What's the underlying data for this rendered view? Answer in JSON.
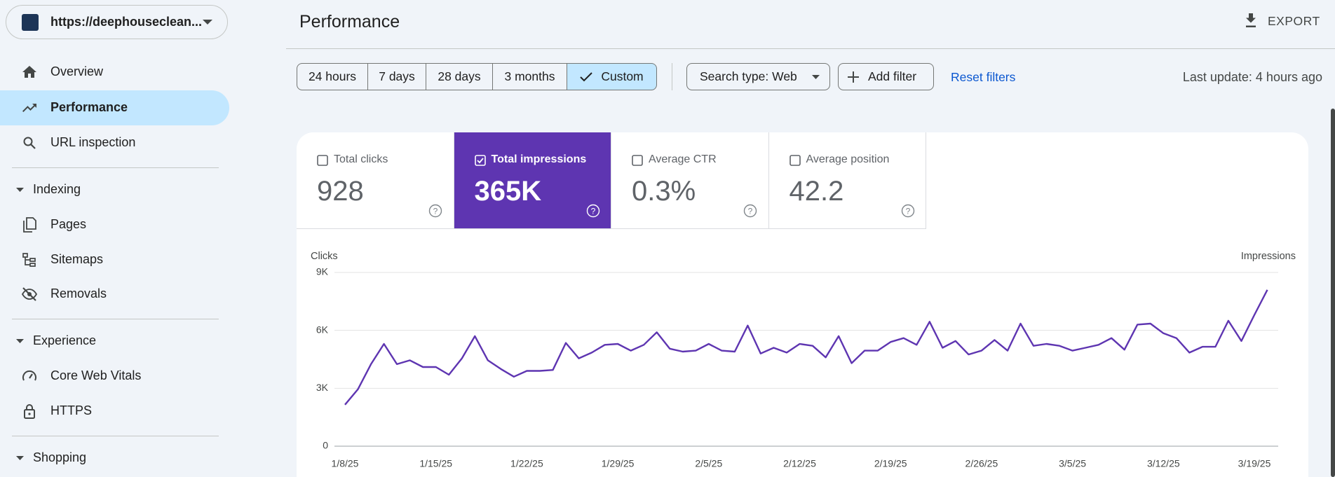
{
  "property": "https://deephouseclean...",
  "nav_top": [
    {
      "label": "Overview"
    },
    {
      "label": "Performance",
      "active": true
    },
    {
      "label": "URL inspection"
    }
  ],
  "nav_groups": [
    {
      "title": "Indexing",
      "items": [
        {
          "label": "Pages"
        },
        {
          "label": "Sitemaps"
        },
        {
          "label": "Removals"
        }
      ]
    },
    {
      "title": "Experience",
      "items": [
        {
          "label": "Core Web Vitals"
        },
        {
          "label": "HTTPS"
        }
      ]
    },
    {
      "title": "Shopping"
    }
  ],
  "header": {
    "title": "Performance",
    "export": "EXPORT"
  },
  "filters": {
    "ranges": [
      {
        "label": "24 hours"
      },
      {
        "label": "7 days"
      },
      {
        "label": "28 days"
      },
      {
        "label": "3 months"
      },
      {
        "label": "Custom",
        "selected": true
      }
    ],
    "search_type": "Search type: Web",
    "add_filter": "Add filter",
    "reset": "Reset filters",
    "last_update": "Last update: 4 hours ago"
  },
  "metrics": [
    {
      "label": "Total clicks",
      "value": "928",
      "selected": false
    },
    {
      "label": "Total impressions",
      "value": "365K",
      "selected": true
    },
    {
      "label": "Average CTR",
      "value": "0.3%",
      "selected": false
    },
    {
      "label": "Average position",
      "value": "42.2",
      "selected": false
    }
  ],
  "chart_data": {
    "type": "line",
    "y_label": "Clicks",
    "y2_label": "Impressions",
    "color": "#5e35b1",
    "grid": true,
    "categories": [
      "1/8/25",
      null,
      null,
      null,
      null,
      null,
      null,
      "1/15/25",
      null,
      null,
      null,
      null,
      null,
      null,
      "1/22/25",
      null,
      null,
      null,
      null,
      null,
      null,
      "1/29/25",
      null,
      null,
      null,
      null,
      null,
      null,
      "2/5/25",
      null,
      null,
      null,
      null,
      null,
      null,
      "2/12/25",
      null,
      null,
      null,
      null,
      null,
      null,
      "2/19/25",
      null,
      null,
      null,
      null,
      null,
      null,
      "2/26/25",
      null,
      null,
      null,
      null,
      null,
      null,
      "3/5/25",
      null,
      null,
      null,
      null,
      null,
      null,
      "3/12/25",
      null,
      null,
      null,
      null,
      null,
      null,
      "3/19/25",
      null
    ],
    "values": [
      2150,
      2950,
      4250,
      5300,
      4250,
      4450,
      4100,
      4100,
      3700,
      4550,
      5700,
      4450,
      4000,
      3600,
      3900,
      3900,
      3950,
      5350,
      4550,
      4850,
      5250,
      5300,
      4950,
      5250,
      5900,
      5050,
      4900,
      4950,
      5300,
      4950,
      4900,
      6250,
      4800,
      5100,
      4850,
      5300,
      5200,
      4600,
      5700,
      4300,
      4950,
      4950,
      5400,
      5600,
      5250,
      6450,
      5100,
      5450,
      4750,
      4950,
      5500,
      4950,
      6350,
      5200,
      5300,
      5200,
      4950,
      5100,
      5250,
      5600,
      5000,
      6300,
      6350,
      5850,
      5600,
      4850,
      5150,
      5150,
      6500,
      5450,
      6800,
      8100
    ],
    "ylim": [
      0,
      9000
    ],
    "yticks": [
      0,
      {
        "value": 3000,
        "label": "3K"
      },
      {
        "value": 6000,
        "label": "6K"
      },
      {
        "value": 9000,
        "label": "9K"
      }
    ]
  }
}
